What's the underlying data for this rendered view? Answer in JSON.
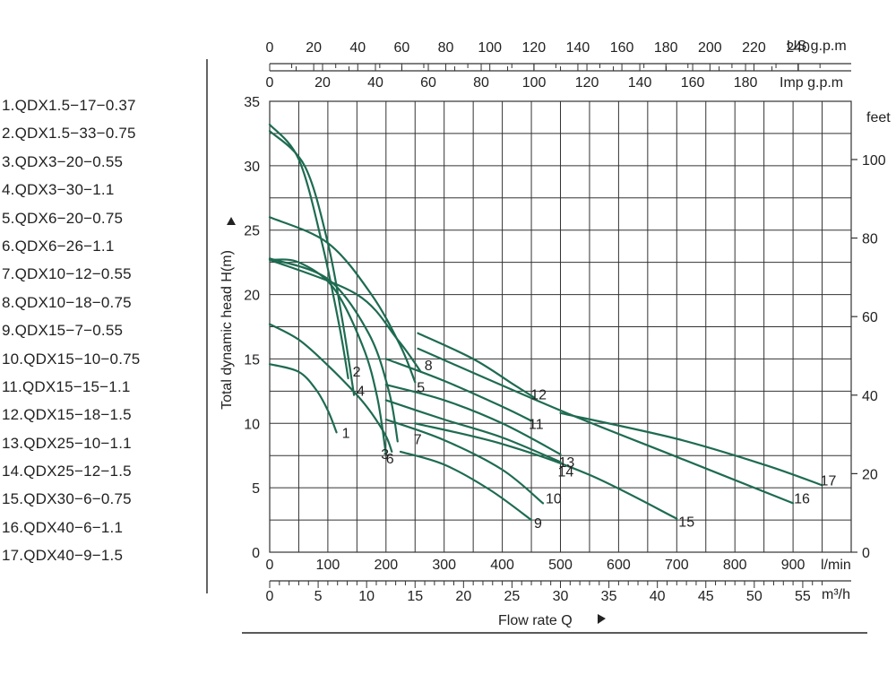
{
  "legend": [
    "1.QDX1.5−17−0.37",
    "2.QDX1.5−33−0.75",
    "3.QDX3−20−0.55",
    "4.QDX3−30−1.1",
    "5.QDX6−20−0.75",
    "6.QDX6−26−1.1",
    "7.QDX10−12−0.55",
    "8.QDX10−18−0.75",
    "9.QDX15−7−0.55",
    "10.QDX15−10−0.75",
    "11.QDX15−15−1.1",
    "12.QDX15−18−1.5",
    "13.QDX25−10−1.1",
    "14.QDX25−12−1.5",
    "15.QDX30−6−0.75",
    "16.QDX40−6−1.1",
    "17.QDX40−9−1.5"
  ],
  "chart_data": {
    "type": "line",
    "color": "#1e6b52",
    "xlabel": "Flow  rate Q",
    "ylabel": "Total dynamic head H(m)",
    "xlim": [
      0,
      1000
    ],
    "ylim": [
      0,
      35
    ],
    "x_unit": "l/min",
    "y_unit_right": "feet",
    "us_unit": "US g.p.m",
    "imp_unit": "Imp g.p.m",
    "m3_unit": "m³/h",
    "x_ticks": [
      0,
      100,
      200,
      300,
      400,
      500,
      600,
      700,
      800,
      900
    ],
    "y_ticks": [
      0,
      5,
      10,
      15,
      20,
      25,
      30,
      35
    ],
    "feet_ticks": [
      0,
      20,
      40,
      60,
      80,
      100
    ],
    "us_ticks": [
      0,
      20,
      40,
      60,
      80,
      100,
      120,
      140,
      160,
      180,
      200,
      220,
      240
    ],
    "imp_ticks": [
      0,
      20,
      40,
      60,
      80,
      100,
      120,
      140,
      160,
      180
    ],
    "m3h_ticks": [
      0,
      5,
      10,
      15,
      20,
      25,
      30,
      35,
      40,
      45,
      50,
      55
    ],
    "series": [
      {
        "name": "1",
        "x": [
          0,
          50,
          80,
          100,
          115
        ],
        "y": [
          14.6,
          14.0,
          12.6,
          11.0,
          9.3
        ]
      },
      {
        "name": "2",
        "x": [
          0,
          50,
          90,
          120,
          135
        ],
        "y": [
          33.2,
          30.5,
          24.0,
          17.5,
          13.5
        ]
      },
      {
        "name": "3",
        "x": [
          0,
          50,
          100,
          150,
          175,
          200,
          210
        ],
        "y": [
          17.7,
          16.5,
          14.5,
          12.2,
          10.8,
          9.0,
          7.8
        ]
      },
      {
        "name": "4",
        "x": [
          0,
          60,
          100,
          125,
          145
        ],
        "y": [
          32.7,
          30.0,
          24.0,
          18.0,
          12.2
        ]
      },
      {
        "name": "5",
        "x": [
          0,
          100,
          175,
          225,
          250
        ],
        "y": [
          26.0,
          24.0,
          20.0,
          16.0,
          13.2
        ]
      },
      {
        "name": "6",
        "x": [
          0,
          50,
          110,
          160,
          185,
          200
        ],
        "y": [
          22.7,
          22.5,
          20.5,
          16.0,
          12.0,
          7.6
        ]
      },
      {
        "name": "7",
        "x": [
          0,
          100,
          170,
          205,
          220
        ],
        "y": [
          22.8,
          21.2,
          17.0,
          12.5,
          8.6
        ]
      },
      {
        "name": "8",
        "x": [
          0,
          150,
          220,
          260
        ],
        "y": [
          22.7,
          20.0,
          16.5,
          14.0
        ]
      },
      {
        "name": "9",
        "x": [
          225,
          300,
          380,
          450
        ],
        "y": [
          7.8,
          6.8,
          4.8,
          2.5
        ]
      },
      {
        "name": "10",
        "x": [
          200,
          300,
          400,
          470
        ],
        "y": [
          10.3,
          8.7,
          6.4,
          3.8
        ]
      },
      {
        "name": "11",
        "x": [
          200,
          300,
          400,
          450
        ],
        "y": [
          15.0,
          13.3,
          11.3,
          10.2
        ]
      },
      {
        "name": "12",
        "x": [
          255,
          350,
          420,
          455
        ],
        "y": [
          17.0,
          15.0,
          13.0,
          12.0
        ]
      },
      {
        "name": "13",
        "x": [
          200,
          300,
          400,
          500
        ],
        "y": [
          13.0,
          11.8,
          10.0,
          7.6
        ]
      },
      {
        "name": "14",
        "x": [
          200,
          300,
          400,
          500
        ],
        "y": [
          11.8,
          10.3,
          8.9,
          7.0
        ]
      },
      {
        "name": "15",
        "x": [
          250,
          400,
          550,
          700
        ],
        "y": [
          10.0,
          8.4,
          6.0,
          2.6
        ]
      },
      {
        "name": "16",
        "x": [
          255,
          500,
          700,
          900
        ],
        "y": [
          15.8,
          11.0,
          7.4,
          3.8
        ]
      },
      {
        "name": "17",
        "x": [
          500,
          700,
          850,
          950
        ],
        "y": [
          10.8,
          8.8,
          6.8,
          5.2
        ]
      }
    ]
  }
}
